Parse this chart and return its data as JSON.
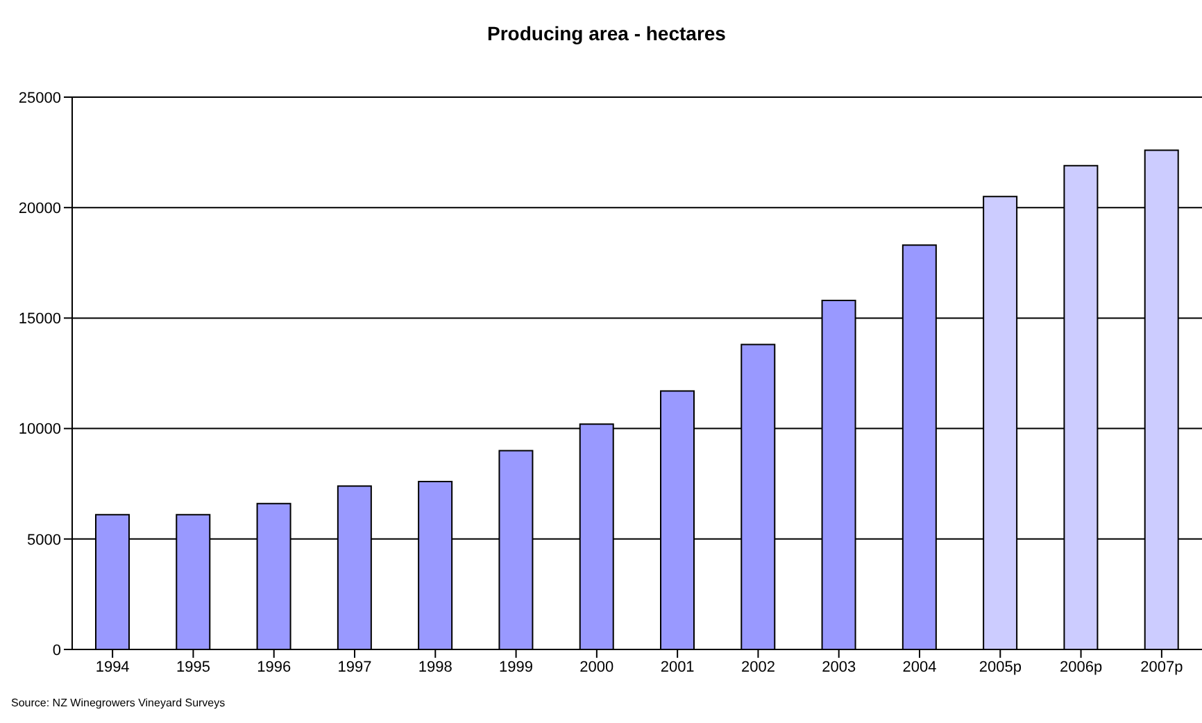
{
  "chart_data": {
    "type": "bar",
    "title": "Producing area - hectares",
    "categories": [
      "1994",
      "1995",
      "1996",
      "1997",
      "1998",
      "1999",
      "2000",
      "2001",
      "2002",
      "2003",
      "2004",
      "2005p",
      "2006p",
      "2007p"
    ],
    "values": [
      6100,
      6100,
      6600,
      7400,
      7600,
      9000,
      10200,
      11700,
      13800,
      15800,
      18300,
      20500,
      21900,
      22600
    ],
    "colors": [
      "#9999ff",
      "#9999ff",
      "#9999ff",
      "#9999ff",
      "#9999ff",
      "#9999ff",
      "#9999ff",
      "#9999ff",
      "#9999ff",
      "#9999ff",
      "#9999ff",
      "#ccccff",
      "#ccccff",
      "#ccccff"
    ],
    "ylim": [
      0,
      25000
    ],
    "yticks": [
      0,
      5000,
      10000,
      15000,
      20000,
      25000
    ],
    "grid": "y",
    "annotations": [
      "Source: NZ Winegrowers Vineyard Surveys"
    ]
  }
}
